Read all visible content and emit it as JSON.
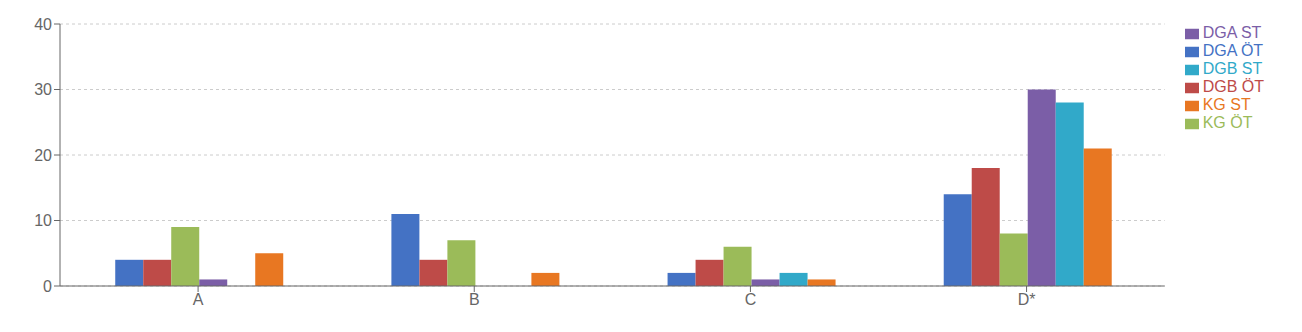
{
  "chart_data": {
    "type": "bar",
    "categories": [
      "A",
      "B",
      "C",
      "D*"
    ],
    "series": [
      {
        "name": "DGA ÖT",
        "color": "#4472C4",
        "values": [
          4,
          11,
          2,
          14
        ]
      },
      {
        "name": "DGB ÖT",
        "color": "#BE4B48",
        "values": [
          4,
          4,
          4,
          18
        ]
      },
      {
        "name": "KG ÖT",
        "color": "#9BBB59",
        "values": [
          9,
          7,
          6,
          8
        ]
      },
      {
        "name": "DGA ST",
        "color": "#7B5EA7",
        "values": [
          1,
          0,
          1,
          30
        ]
      },
      {
        "name": "DGB ST",
        "color": "#31A9C9",
        "values": [
          0,
          0,
          2,
          28
        ]
      },
      {
        "name": "KG ST",
        "color": "#E87722",
        "values": [
          5,
          2,
          1,
          21
        ]
      }
    ],
    "ylim": [
      0,
      40
    ],
    "yticks": [
      0,
      10,
      20,
      30,
      40
    ],
    "grid": true,
    "legend": "right"
  }
}
